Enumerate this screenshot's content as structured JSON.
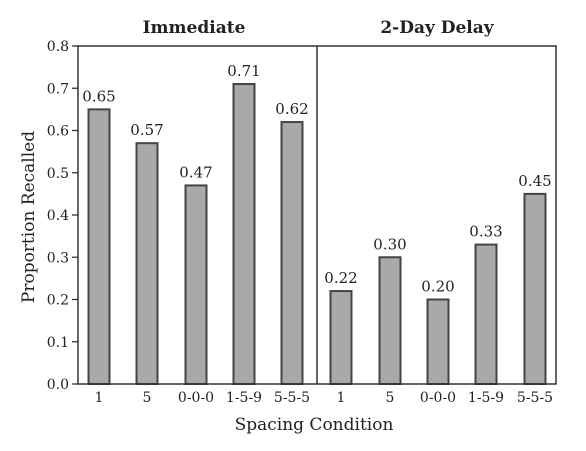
{
  "chart_data": {
    "type": "bar",
    "ylabel": "Proportion Recalled",
    "xlabel": "Spacing Condition",
    "ylim": [
      0,
      0.8
    ],
    "yticks": [
      "0.0",
      "0.1",
      "0.2",
      "0.3",
      "0.4",
      "0.5",
      "0.6",
      "0.7",
      "0.8"
    ],
    "grid": false,
    "bar_color": "#a9a9ab",
    "bar_edge_color": "#444444",
    "panels": [
      {
        "title": "Immediate",
        "categories": [
          "1",
          "5",
          "0-0-0",
          "1-5-9",
          "5-5-5"
        ],
        "values": [
          0.65,
          0.57,
          0.47,
          0.71,
          0.62
        ],
        "labels": [
          "0.65",
          "0.57",
          "0.47",
          "0.71",
          "0.62"
        ]
      },
      {
        "title": "2-Day Delay",
        "categories": [
          "1",
          "5",
          "0-0-0",
          "1-5-9",
          "5-5-5"
        ],
        "values": [
          0.22,
          0.3,
          0.2,
          0.33,
          0.45
        ],
        "labels": [
          "0.22",
          "0.30",
          "0.20",
          "0.33",
          "0.45"
        ]
      }
    ]
  }
}
